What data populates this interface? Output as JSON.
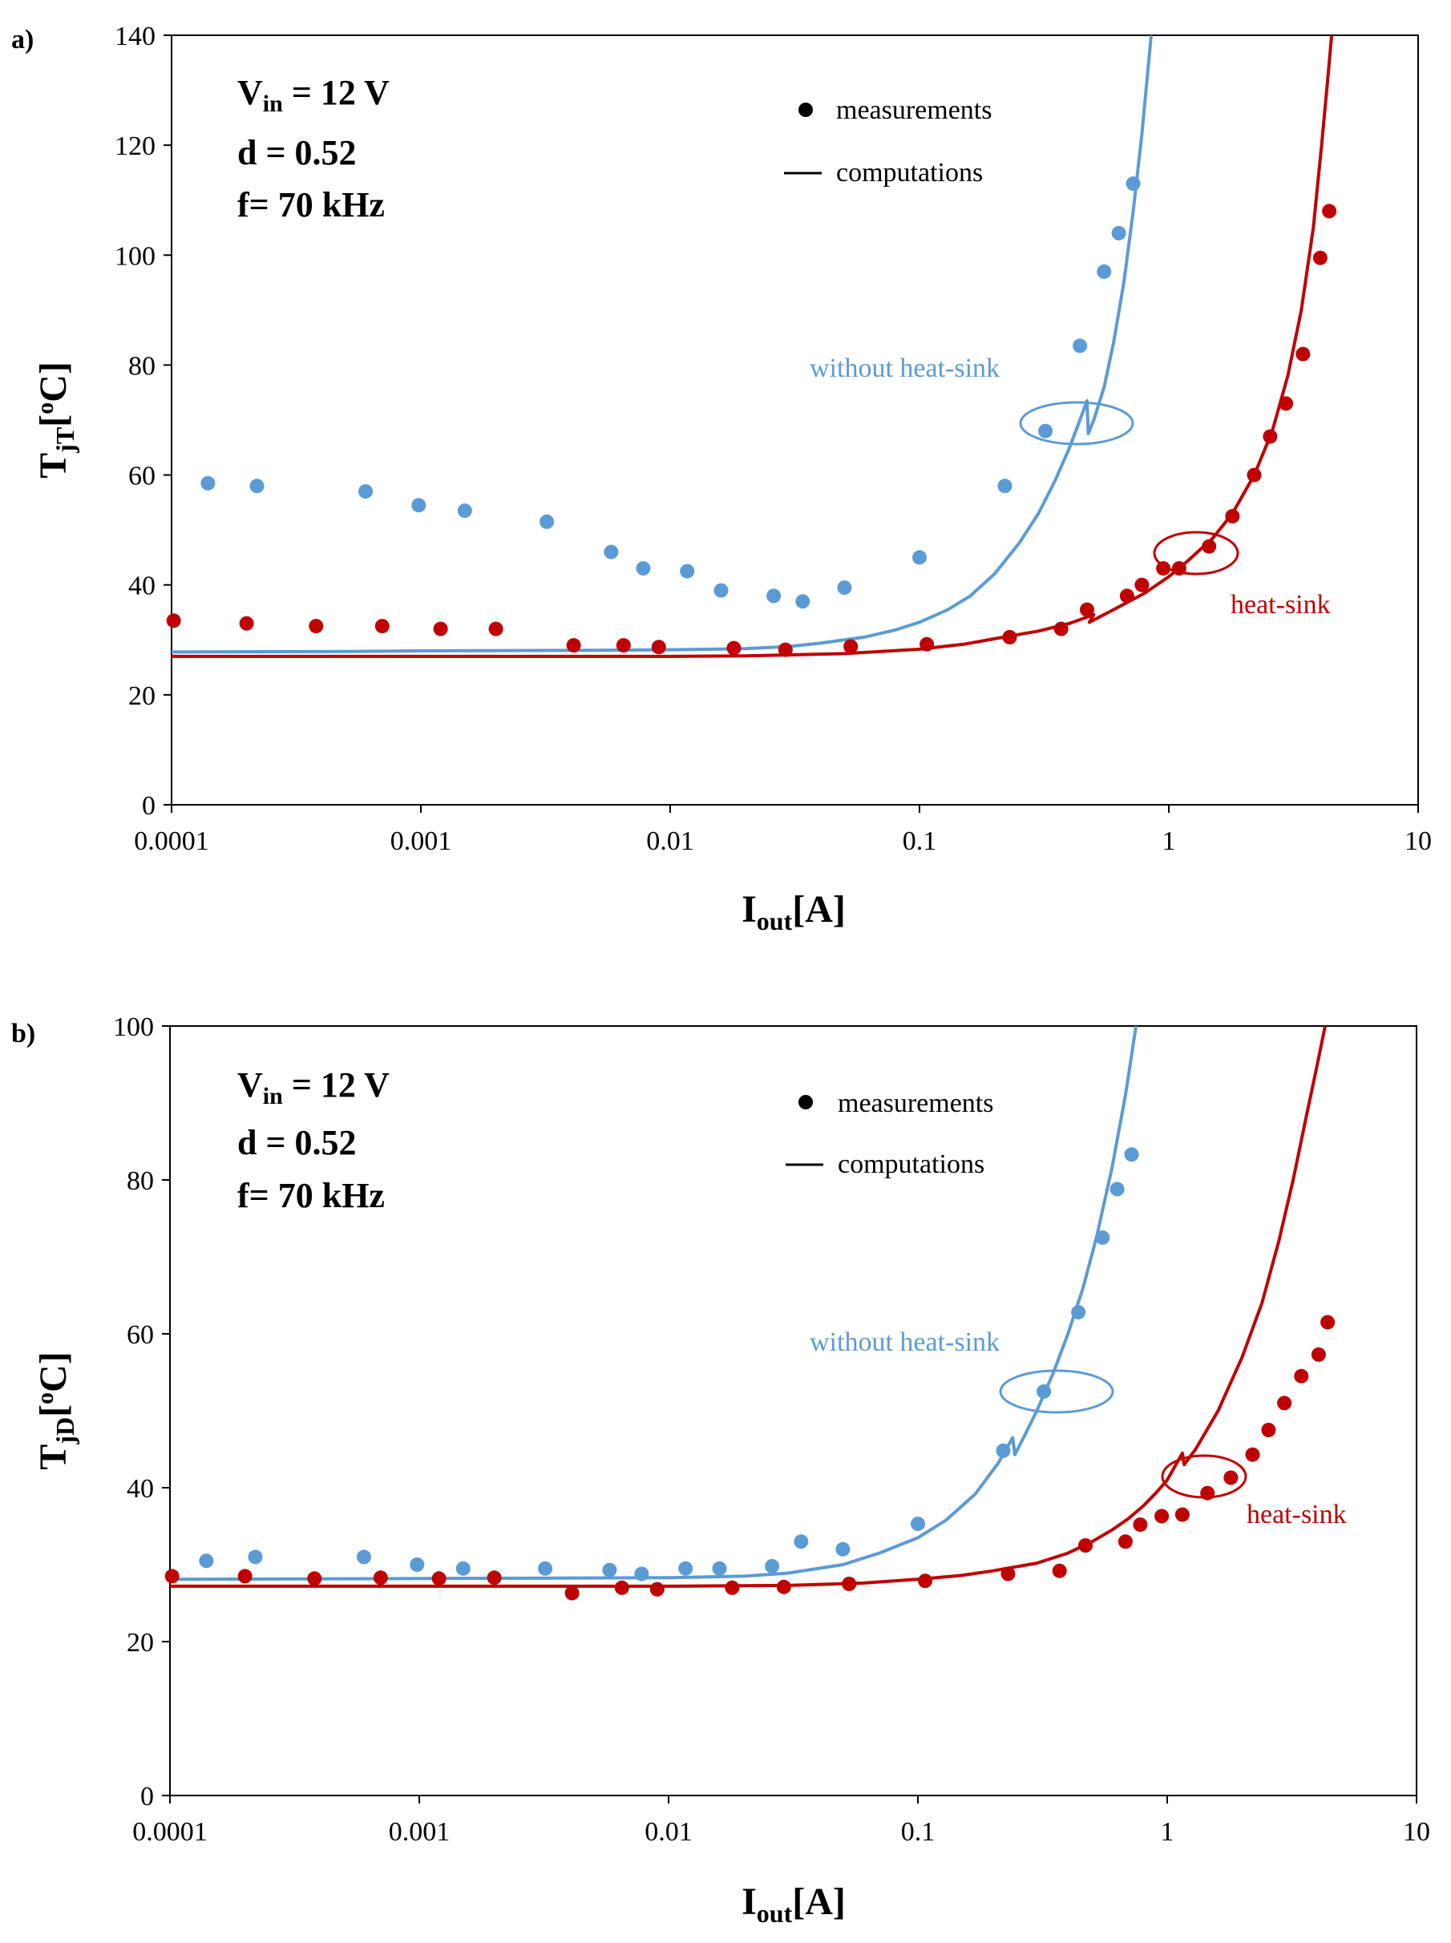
{
  "colors": {
    "blue": "#5b9bd5",
    "red": "#c00000",
    "black": "#000000"
  },
  "chart_data": [
    {
      "panel": "a)",
      "type": "scatter",
      "x_scale": "log",
      "xlabel_main": "I",
      "xlabel_sub": "out",
      "xlabel_tail": "[A]",
      "ylabel_main": "T",
      "ylabel_sub": "jT",
      "ylabel_open": "[",
      "ylabel_sup": "o",
      "ylabel_tail": "C]",
      "xlim": [
        0.0001,
        10
      ],
      "ylim": [
        0,
        140
      ],
      "y_ticks": [
        0,
        20,
        40,
        60,
        80,
        100,
        120,
        140
      ],
      "x_ticks": [
        {
          "value": 0.0001,
          "label": "0.0001"
        },
        {
          "value": 0.001,
          "label": "0.001"
        },
        {
          "value": 0.01,
          "label": "0.01"
        },
        {
          "value": 0.1,
          "label": "0.1"
        },
        {
          "value": 1,
          "label": "1"
        },
        {
          "value": 10,
          "label": "10"
        }
      ],
      "params": {
        "vin_main": "V",
        "vin_sub": "in",
        "vin_value": " = 12 V",
        "duty": "d = 0.52",
        "freq": "f= 70 kHz"
      },
      "legend": {
        "measurements": "measurements",
        "computations": "computations"
      },
      "annotations": {
        "without": "without heat-sink",
        "with": "heat-sink"
      },
      "series": [
        {
          "name": "without heat-sink (measurements)",
          "color": "blue",
          "points": [
            [
              0.00014,
              58.5
            ],
            [
              0.00022,
              58
            ],
            [
              0.0006,
              57
            ],
            [
              0.00098,
              54.5
            ],
            [
              0.0015,
              53.5
            ],
            [
              0.0032,
              51.5
            ],
            [
              0.0058,
              46
            ],
            [
              0.0078,
              43
            ],
            [
              0.0117,
              42.5
            ],
            [
              0.016,
              39
            ],
            [
              0.026,
              38
            ],
            [
              0.034,
              37
            ],
            [
              0.05,
              39.5
            ],
            [
              0.1,
              45
            ],
            [
              0.22,
              58
            ],
            [
              0.32,
              68
            ],
            [
              0.44,
              83.5
            ],
            [
              0.55,
              97
            ],
            [
              0.63,
              104
            ],
            [
              0.72,
              113
            ]
          ]
        },
        {
          "name": "heat-sink (measurements)",
          "color": "red",
          "points": [
            [
              0.000102,
              33.5
            ],
            [
              0.0002,
              33
            ],
            [
              0.00038,
              32.5
            ],
            [
              0.0007,
              32.5
            ],
            [
              0.0012,
              32
            ],
            [
              0.002,
              32
            ],
            [
              0.0041,
              29
            ],
            [
              0.0065,
              29
            ],
            [
              0.009,
              28.7
            ],
            [
              0.018,
              28.5
            ],
            [
              0.029,
              28.2
            ],
            [
              0.053,
              28.8
            ],
            [
              0.107,
              29.2
            ],
            [
              0.23,
              30.5
            ],
            [
              0.37,
              32
            ],
            [
              0.47,
              35.5
            ],
            [
              0.68,
              38
            ],
            [
              0.78,
              40
            ],
            [
              0.95,
              43
            ],
            [
              1.1,
              43
            ],
            [
              1.45,
              47
            ],
            [
              1.8,
              52.5
            ],
            [
              2.2,
              60
            ],
            [
              2.55,
              67
            ],
            [
              2.95,
              73
            ],
            [
              3.45,
              82
            ],
            [
              4.05,
              99.5
            ],
            [
              4.4,
              108
            ]
          ]
        }
      ],
      "curves": [
        {
          "name": "without heat-sink (computations)",
          "color": "blue",
          "points": [
            [
              0.0001,
              27.8
            ],
            [
              0.0005,
              27.9
            ],
            [
              0.001,
              28
            ],
            [
              0.005,
              28.1
            ],
            [
              0.01,
              28.2
            ],
            [
              0.02,
              28.4
            ],
            [
              0.03,
              28.8
            ],
            [
              0.04,
              29.4
            ],
            [
              0.06,
              30.5
            ],
            [
              0.08,
              31.8
            ],
            [
              0.1,
              33.2
            ],
            [
              0.13,
              35.5
            ],
            [
              0.16,
              38
            ],
            [
              0.2,
              42
            ],
            [
              0.25,
              47.5
            ],
            [
              0.3,
              53
            ],
            [
              0.35,
              59
            ],
            [
              0.4,
              65
            ],
            [
              0.44,
              70
            ],
            [
              0.47,
              73.5
            ],
            [
              0.475,
              67.5
            ],
            [
              0.5,
              70
            ],
            [
              0.55,
              76
            ],
            [
              0.6,
              84
            ],
            [
              0.66,
              95
            ],
            [
              0.72,
              108
            ],
            [
              0.78,
              122
            ],
            [
              0.83,
              135
            ],
            [
              0.85,
              140
            ]
          ]
        },
        {
          "name": "heat-sink (computations)",
          "color": "red",
          "points": [
            [
              0.0001,
              27
            ],
            [
              0.001,
              27
            ],
            [
              0.01,
              27
            ],
            [
              0.02,
              27.1
            ],
            [
              0.05,
              27.5
            ],
            [
              0.1,
              28.3
            ],
            [
              0.15,
              29.2
            ],
            [
              0.2,
              30.2
            ],
            [
              0.3,
              31.6
            ],
            [
              0.4,
              33
            ],
            [
              0.5,
              34.6
            ],
            [
              0.48,
              33.2
            ],
            [
              0.6,
              35.5
            ],
            [
              0.8,
              38.5
            ],
            [
              1.0,
              41.5
            ],
            [
              1.2,
              44.5
            ],
            [
              1.5,
              48.5
            ],
            [
              1.8,
              53
            ],
            [
              2.2,
              60
            ],
            [
              2.6,
              68
            ],
            [
              3.0,
              78
            ],
            [
              3.4,
              90
            ],
            [
              3.8,
              105
            ],
            [
              4.1,
              120
            ],
            [
              4.4,
              135
            ],
            [
              4.5,
              140
            ]
          ]
        }
      ]
    },
    {
      "panel": "b)",
      "type": "scatter",
      "x_scale": "log",
      "xlabel_main": "I",
      "xlabel_sub": "out",
      "xlabel_tail": "[A]",
      "ylabel_main": "T",
      "ylabel_sub": "jD",
      "ylabel_open": "[",
      "ylabel_sup": "o",
      "ylabel_tail": "C]",
      "xlim": [
        0.0001,
        10
      ],
      "ylim": [
        0,
        100
      ],
      "y_ticks": [
        0,
        20,
        40,
        60,
        80,
        100
      ],
      "x_ticks": [
        {
          "value": 0.0001,
          "label": "0.0001"
        },
        {
          "value": 0.001,
          "label": "0.001"
        },
        {
          "value": 0.01,
          "label": "0.01"
        },
        {
          "value": 0.1,
          "label": "0.1"
        },
        {
          "value": 1,
          "label": "1"
        },
        {
          "value": 10,
          "label": "10"
        }
      ],
      "params": {
        "vin_main": "V",
        "vin_sub": "in",
        "vin_value": " = 12 V",
        "duty": "d = 0.52",
        "freq": "f= 70 kHz"
      },
      "legend": {
        "measurements": "measurements",
        "computations": "computations"
      },
      "annotations": {
        "without": "without heat-sink",
        "with": "heat-sink"
      },
      "series": [
        {
          "name": "without heat-sink (measurements)",
          "color": "blue",
          "points": [
            [
              0.00014,
              30.5
            ],
            [
              0.00022,
              31
            ],
            [
              0.0006,
              31
            ],
            [
              0.00098,
              30
            ],
            [
              0.0015,
              29.5
            ],
            [
              0.0032,
              29.5
            ],
            [
              0.0058,
              29.3
            ],
            [
              0.0078,
              28.8
            ],
            [
              0.0117,
              29.5
            ],
            [
              0.016,
              29.5
            ],
            [
              0.026,
              29.8
            ],
            [
              0.034,
              33
            ],
            [
              0.05,
              32
            ],
            [
              0.1,
              35.3
            ],
            [
              0.22,
              44.8
            ],
            [
              0.32,
              52.5
            ],
            [
              0.44,
              62.8
            ],
            [
              0.55,
              72.5
            ],
            [
              0.63,
              78.8
            ],
            [
              0.72,
              83.3
            ]
          ]
        },
        {
          "name": "heat-sink (measurements)",
          "color": "red",
          "points": [
            [
              0.000102,
              28.5
            ],
            [
              0.0002,
              28.5
            ],
            [
              0.00038,
              28.2
            ],
            [
              0.0007,
              28.3
            ],
            [
              0.0012,
              28.2
            ],
            [
              0.002,
              28.3
            ],
            [
              0.0041,
              26.3
            ],
            [
              0.0065,
              27
            ],
            [
              0.009,
              26.8
            ],
            [
              0.018,
              27
            ],
            [
              0.029,
              27.1
            ],
            [
              0.053,
              27.5
            ],
            [
              0.107,
              27.9
            ],
            [
              0.23,
              28.8
            ],
            [
              0.37,
              29.2
            ],
            [
              0.47,
              32.5
            ],
            [
              0.68,
              33
            ],
            [
              0.78,
              35.2
            ],
            [
              0.95,
              36.3
            ],
            [
              1.15,
              36.5
            ],
            [
              1.45,
              39.3
            ],
            [
              1.8,
              41.3
            ],
            [
              2.2,
              44.3
            ],
            [
              2.55,
              47.5
            ],
            [
              2.95,
              51
            ],
            [
              3.45,
              54.5
            ],
            [
              4.05,
              57.3
            ],
            [
              4.4,
              61.5
            ]
          ]
        }
      ],
      "curves": [
        {
          "name": "without heat-sink (computations)",
          "color": "blue",
          "points": [
            [
              0.0001,
              28.1
            ],
            [
              0.001,
              28.2
            ],
            [
              0.01,
              28.3
            ],
            [
              0.02,
              28.5
            ],
            [
              0.03,
              28.9
            ],
            [
              0.05,
              30
            ],
            [
              0.07,
              31.5
            ],
            [
              0.1,
              33.5
            ],
            [
              0.13,
              35.8
            ],
            [
              0.17,
              39.2
            ],
            [
              0.21,
              43.2
            ],
            [
              0.24,
              46.5
            ],
            [
              0.245,
              44.3
            ],
            [
              0.27,
              47
            ],
            [
              0.3,
              50
            ],
            [
              0.35,
              55
            ],
            [
              0.4,
              60
            ],
            [
              0.46,
              66
            ],
            [
              0.52,
              72.5
            ],
            [
              0.6,
              81.5
            ],
            [
              0.68,
              91
            ],
            [
              0.75,
              100
            ]
          ]
        },
        {
          "name": "heat-sink (computations)",
          "color": "red",
          "points": [
            [
              0.0001,
              27.2
            ],
            [
              0.001,
              27.2
            ],
            [
              0.01,
              27.2
            ],
            [
              0.03,
              27.3
            ],
            [
              0.06,
              27.6
            ],
            [
              0.1,
              28.1
            ],
            [
              0.15,
              28.6
            ],
            [
              0.2,
              29.2
            ],
            [
              0.3,
              30.2
            ],
            [
              0.4,
              31.5
            ],
            [
              0.5,
              33
            ],
            [
              0.6,
              34.5
            ],
            [
              0.7,
              36
            ],
            [
              0.8,
              37.6
            ],
            [
              0.9,
              39.3
            ],
            [
              1.0,
              41
            ],
            [
              1.15,
              44.5
            ],
            [
              1.17,
              43
            ],
            [
              1.3,
              45
            ],
            [
              1.6,
              50
            ],
            [
              2.0,
              57
            ],
            [
              2.4,
              64
            ],
            [
              2.8,
              72
            ],
            [
              3.2,
              80
            ],
            [
              3.6,
              88
            ],
            [
              4.0,
              95
            ],
            [
              4.3,
              100
            ]
          ]
        }
      ]
    }
  ]
}
